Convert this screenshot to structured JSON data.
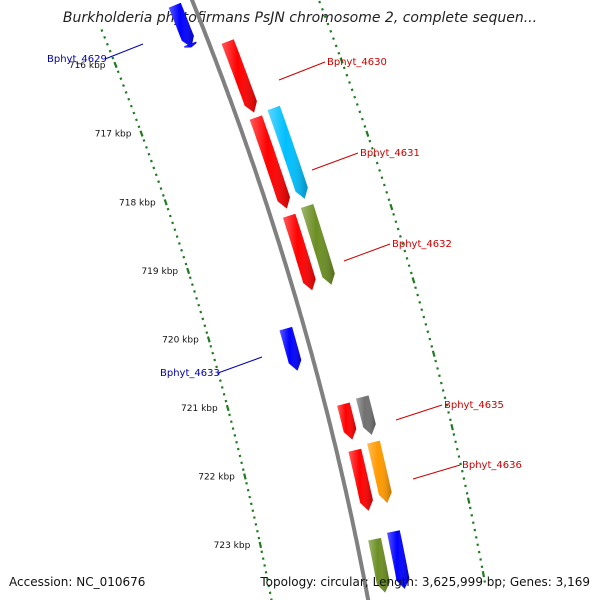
{
  "title": "Burkholderia phytofirmans PsJN chromosome 2, complete sequen...",
  "footer": {
    "accession": "Accession: NC_010676",
    "topology": "Topology: circular; Length: 3,625,999 bp; Genes: 3,169"
  },
  "colors": {
    "backbone": "#808080",
    "tick": "#207a20",
    "label_plus": "#cc0000",
    "label_minus": "#0000aa",
    "red": "#ff0000",
    "blue": "#0000ff",
    "cyan": "#00bfff",
    "olive": "#6b8e23",
    "grey": "#707070",
    "orange": "#ff9900"
  },
  "chart_data": {
    "type": "genome-map",
    "unit": "kbp",
    "scale_ticks": [
      {
        "label": "716 kbp",
        "pos": 716.0
      },
      {
        "label": "717 kbp",
        "pos": 717.0
      },
      {
        "label": "718 kbp",
        "pos": 718.0
      },
      {
        "label": "719 kbp",
        "pos": 719.0
      },
      {
        "label": "720 kbp",
        "pos": 720.0
      },
      {
        "label": "721 kbp",
        "pos": 721.0
      },
      {
        "label": "722 kbp",
        "pos": 722.0
      },
      {
        "label": "723 kbp",
        "pos": 723.0
      }
    ],
    "genes": [
      {
        "id": "g-top-blue",
        "track": -1,
        "start": 715.55,
        "end": 716.15,
        "color": "blue",
        "label": ""
      },
      {
        "id": "g-4629",
        "track": -1,
        "start": 716.1,
        "end": 716.15,
        "color": "blue",
        "label": "Bphyt_4629"
      },
      {
        "id": "g-4630",
        "track": 1,
        "start": 716.25,
        "end": 717.25,
        "color": "red",
        "label": "Bphyt_4630"
      },
      {
        "id": "g-4631",
        "track": 1,
        "start": 717.32,
        "end": 718.6,
        "color": "red",
        "label": "Bphyt_4631"
      },
      {
        "id": "g-4631b",
        "track": 2,
        "start": 717.28,
        "end": 718.55,
        "color": "cyan",
        "label": ""
      },
      {
        "id": "g-4632",
        "track": 1,
        "start": 718.7,
        "end": 719.75,
        "color": "red",
        "label": "Bphyt_4632"
      },
      {
        "id": "g-4632b",
        "track": 2,
        "start": 718.65,
        "end": 719.75,
        "color": "olive",
        "label": ""
      },
      {
        "id": "g-4633",
        "track": -1,
        "start": 720.15,
        "end": 720.75,
        "color": "blue",
        "label": "Bphyt_4633"
      },
      {
        "id": "g-4635",
        "track": 1,
        "start": 721.35,
        "end": 721.85,
        "color": "red",
        "label": "Bphyt_4635"
      },
      {
        "id": "g-4635b",
        "track": 2,
        "start": 721.32,
        "end": 721.85,
        "color": "grey",
        "label": ""
      },
      {
        "id": "g-4636",
        "track": 1,
        "start": 722.0,
        "end": 722.85,
        "color": "red",
        "label": "Bphyt_4636"
      },
      {
        "id": "g-4636b",
        "track": 2,
        "start": 721.95,
        "end": 722.8,
        "color": "orange",
        "label": ""
      },
      {
        "id": "g-bottom-olive",
        "track": 1,
        "start": 723.25,
        "end": 724.0,
        "color": "olive",
        "label": ""
      },
      {
        "id": "g-bottom-blue",
        "track": 2,
        "start": 723.2,
        "end": 724.0,
        "color": "blue",
        "label": ""
      }
    ]
  }
}
